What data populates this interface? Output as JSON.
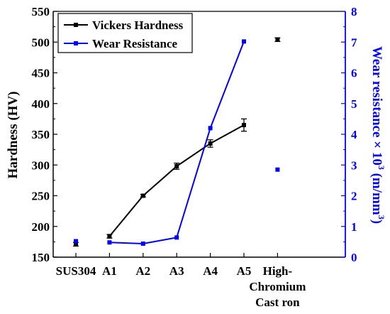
{
  "chart_data": {
    "type": "line",
    "categories": [
      "SUS304",
      "A1",
      "A2",
      "A3",
      "A4",
      "A5",
      "High-Chromium Cast ron"
    ],
    "category_lines": [
      [
        "SUS304"
      ],
      [
        "A1"
      ],
      [
        "A2"
      ],
      [
        "A3"
      ],
      [
        "A4"
      ],
      [
        "A5"
      ],
      [
        "High-",
        "Chromium",
        "Cast ron"
      ]
    ],
    "series": [
      {
        "name": "Vickers Hardness",
        "axis": "left",
        "color": "#000000",
        "values": [
          171,
          184,
          250,
          298,
          335,
          365,
          504
        ],
        "errors": [
          3,
          3,
          2,
          5,
          6,
          10,
          3
        ],
        "connected": [
          false,
          true,
          true,
          true,
          true,
          true,
          false
        ]
      },
      {
        "name": "Wear Resistance",
        "axis": "right",
        "color": "#0000ff",
        "values": [
          0.52,
          0.48,
          0.44,
          0.64,
          4.2,
          7.02,
          2.85
        ],
        "connected": [
          false,
          true,
          true,
          true,
          true,
          true,
          false
        ]
      }
    ],
    "ylabel": "Hardness (HV)",
    "y2label_main": "Wear resistance × 10",
    "y2label_sup": "3",
    "y2label_unit": "(m/mm",
    "y2label_unit_sup": "3",
    "y2label_unit_close": ")",
    "ylim": [
      150,
      550
    ],
    "y2lim": [
      0,
      8
    ],
    "yticks": [
      150,
      200,
      250,
      300,
      350,
      400,
      450,
      500,
      550
    ],
    "y2ticks": [
      0,
      1,
      2,
      3,
      4,
      5,
      6,
      7,
      8
    ],
    "legend_position": "top-left",
    "grid": false
  }
}
